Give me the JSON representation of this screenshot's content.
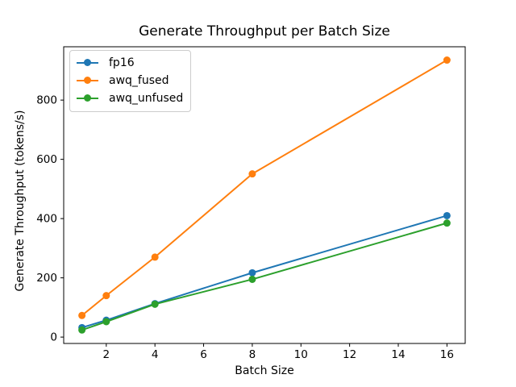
{
  "chart_data": {
    "type": "line",
    "title": "Generate Throughput per Batch Size",
    "xlabel": "Batch Size",
    "ylabel": "Generate Throughput (tokens/s)",
    "x": [
      1,
      2,
      4,
      8,
      16
    ],
    "series": [
      {
        "name": "fp16",
        "color": "#1f77b4",
        "values": [
          32,
          57,
          113,
          217,
          410
        ]
      },
      {
        "name": "awq_fused",
        "color": "#ff7f0e",
        "values": [
          73,
          140,
          270,
          551,
          935
        ]
      },
      {
        "name": "awq_unfused",
        "color": "#2ca02c",
        "values": [
          24,
          52,
          111,
          195,
          385
        ]
      }
    ],
    "xticks": [
      2,
      4,
      6,
      8,
      10,
      12,
      14,
      16
    ],
    "yticks": [
      0,
      200,
      400,
      600,
      800
    ],
    "xlim": [
      0.25,
      16.75
    ],
    "ylim": [
      -21.5,
      980
    ],
    "grid": false,
    "marker": "o",
    "legend_position": "upper left",
    "background": "#ffffff",
    "spine_color": "#000000"
  }
}
